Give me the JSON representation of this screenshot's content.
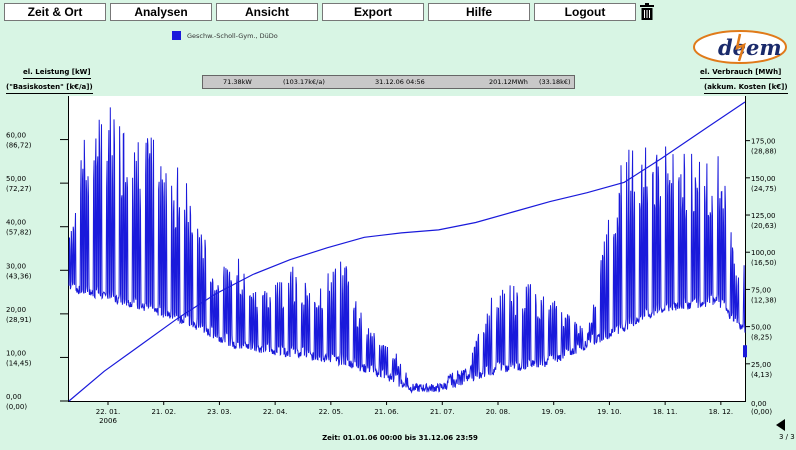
{
  "menu": {
    "items": [
      {
        "label": "Zeit & Ort"
      },
      {
        "label": "Analysen"
      },
      {
        "label": "Ansicht"
      },
      {
        "label": "Export"
      },
      {
        "label": "Hilfe"
      },
      {
        "label": "Logout"
      }
    ]
  },
  "legend": {
    "label": "Geschw.-Scholl-Gym., DüDo",
    "color": "#1a1adb"
  },
  "logo": {
    "text_left": "de",
    "text_right": "em"
  },
  "left_axis": {
    "title1": "el. Leistung [kW]",
    "title2": "(\"Basiskosten\" [k€/a])"
  },
  "right_axis": {
    "title1": "el. Verbrauch [MWh]",
    "title2": "(akkum. Kosten [k€])"
  },
  "readout": {
    "power": "71.38kW",
    "power_cost": "(103.17k€/a)",
    "datetime": "31.12.06 04:56",
    "energy": "201.12MWh",
    "energy_cost": "(33.18k€)"
  },
  "footer": {
    "range": "Zeit: 01.01.06 00:00 bis 31.12.06 23:59"
  },
  "pagination": {
    "page_info": "3 / 3"
  },
  "chart_data": {
    "type": "line",
    "line_color": "#1a1adb",
    "grid": false,
    "x_tick_labels": [
      "22. 01.",
      "21. 02.",
      "23. 03.",
      "22. 04.",
      "22. 05.",
      "21. 06.",
      "21. 07.",
      "20. 08.",
      "19. 09.",
      "19. 10.",
      "18. 11.",
      "18. 12."
    ],
    "x_tick_days": [
      22,
      52,
      82,
      112,
      142,
      172,
      202,
      232,
      262,
      292,
      322,
      352
    ],
    "x_sub_label": "2006",
    "x_range_days": [
      1,
      365
    ],
    "left_y": {
      "range": [
        0,
        70
      ],
      "ticks": [
        0,
        10,
        20,
        30,
        40,
        50,
        60
      ],
      "labels": [
        "0,00",
        "10,00",
        "20,00",
        "30,00",
        "40,00",
        "50,00",
        "60,00"
      ],
      "sub_labels": [
        "(0,00)",
        "(14,45)",
        "(28,91)",
        "(43,36)",
        "(57,82)",
        "(72,27)",
        "(86,72)"
      ]
    },
    "right_y": {
      "range": [
        0,
        205
      ],
      "ticks": [
        25,
        50,
        75,
        100,
        125,
        150,
        175
      ],
      "labels": [
        "25,00",
        "50,00",
        "75,00",
        "100,00",
        "125,00",
        "150,00",
        "175,00"
      ],
      "sub_labels": [
        "(4,13)",
        "(8,25)",
        "(12,38)",
        "(16,50)",
        "(20,63)",
        "(24,75)",
        "(28,88)"
      ],
      "bottom_label": "0,00",
      "bottom_sub_label": "(0,00)"
    },
    "series": [
      {
        "name": "el. Leistung",
        "axis": "left",
        "peak_envelope": {
          "days": [
            1,
            10,
            20,
            35,
            50,
            60,
            70,
            80,
            90,
            100,
            110,
            120,
            130,
            140,
            150,
            160,
            170,
            180,
            185,
            190,
            200,
            205,
            215,
            230,
            245,
            260,
            270,
            280,
            290,
            300,
            310,
            320,
            330,
            340,
            350,
            355,
            360,
            365
          ],
          "kw": [
            40,
            62,
            70,
            62,
            60,
            55,
            45,
            28,
            35,
            27,
            25,
            33,
            26,
            30,
            33,
            18,
            14,
            10,
            4,
            3,
            3,
            6,
            8,
            26,
            28,
            25,
            20,
            16,
            40,
            58,
            62,
            60,
            58,
            58,
            58,
            50,
            30,
            32
          ]
        },
        "base_envelope": {
          "days": [
            1,
            30,
            60,
            90,
            120,
            150,
            170,
            185,
            200,
            230,
            260,
            290,
            320,
            350,
            365
          ],
          "kw": [
            25,
            22,
            18,
            12,
            10,
            8,
            5,
            2,
            2,
            6,
            8,
            14,
            20,
            22,
            15
          ]
        }
      },
      {
        "name": "el. Verbrauch",
        "axis": "right",
        "days": [
          1,
          20,
          40,
          60,
          80,
          100,
          120,
          140,
          160,
          180,
          190,
          200,
          220,
          240,
          260,
          280,
          300,
          320,
          340,
          365
        ],
        "mwh": [
          0,
          20,
          38,
          56,
          72,
          85,
          95,
          103,
          110,
          113,
          114,
          115,
          120,
          127,
          134,
          140,
          147,
          163,
          180,
          201
        ]
      }
    ],
    "cursor": {
      "power_kw": 71.38,
      "energy_mwh": 201.12,
      "datetime": "31.12.06 04:56"
    }
  }
}
